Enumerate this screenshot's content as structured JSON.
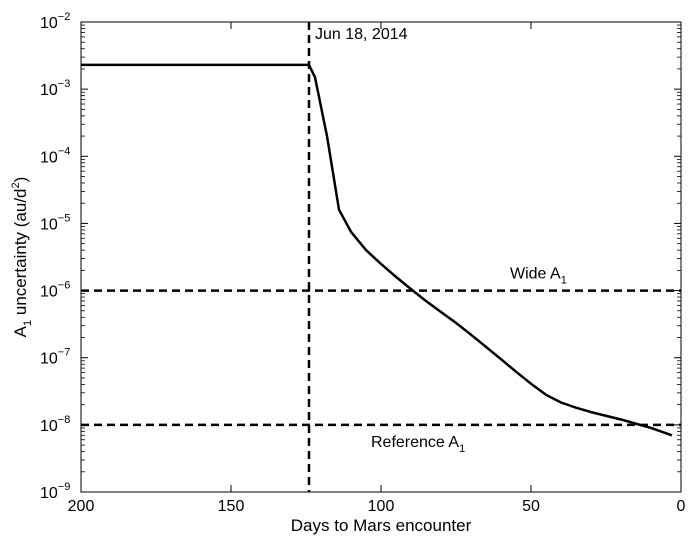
{
  "chart_data": {
    "type": "line",
    "xlabel": "Days to Mars encounter",
    "ylabel_main": "A",
    "ylabel_sub": "1",
    "ylabel_rest": " uncertainty (au/d",
    "ylabel_sup": "2",
    "ylabel_end": ")",
    "x_reversed": true,
    "xlim": [
      200,
      0
    ],
    "ylim": [
      1e-09,
      0.01
    ],
    "y_scale": "log",
    "x_ticks": [
      200,
      150,
      100,
      50,
      0
    ],
    "y_ticks": [
      {
        "value": 1e-09,
        "base": "10",
        "exp": "−9"
      },
      {
        "value": 1e-08,
        "base": "10",
        "exp": "−8"
      },
      {
        "value": 1e-07,
        "base": "10",
        "exp": "−7"
      },
      {
        "value": 1e-06,
        "base": "10",
        "exp": "−6"
      },
      {
        "value": 1e-05,
        "base": "10",
        "exp": "−5"
      },
      {
        "value": 0.0001,
        "base": "10",
        "exp": "−4"
      },
      {
        "value": 0.001,
        "base": "10",
        "exp": "−3"
      },
      {
        "value": 0.01,
        "base": "10",
        "exp": "−2"
      }
    ],
    "series": [
      {
        "name": "A1 uncertainty",
        "style": "solid",
        "color": "#000000",
        "x": [
          200,
          124,
          122,
          118,
          114,
          110,
          105,
          100,
          95,
          90,
          85,
          80,
          75,
          70,
          65,
          60,
          55,
          50,
          45,
          40,
          35,
          30,
          20,
          10,
          3
        ],
        "y": [
          0.0023,
          0.0023,
          0.0015,
          0.0002,
          1.6e-05,
          7.5e-06,
          4e-06,
          2.5e-06,
          1.6e-06,
          1.05e-06,
          7e-07,
          4.8e-07,
          3.3e-07,
          2.2e-07,
          1.45e-07,
          9.5e-08,
          6.2e-08,
          4.1e-08,
          2.8e-08,
          2.15e-08,
          1.8e-08,
          1.55e-08,
          1.2e-08,
          9e-09,
          7e-09
        ]
      }
    ],
    "reference_lines": [
      {
        "orientation": "horizontal",
        "value": 1e-06,
        "style": "dashed",
        "label_main": "Wide A",
        "label_sub": "1",
        "label_side": "above"
      },
      {
        "orientation": "horizontal",
        "value": 1e-08,
        "style": "dashed",
        "label_main": "Reference A",
        "label_sub": "1",
        "label_side": "below"
      },
      {
        "orientation": "vertical",
        "value": 124,
        "style": "dashed",
        "label": "Jun 18, 2014"
      }
    ]
  }
}
